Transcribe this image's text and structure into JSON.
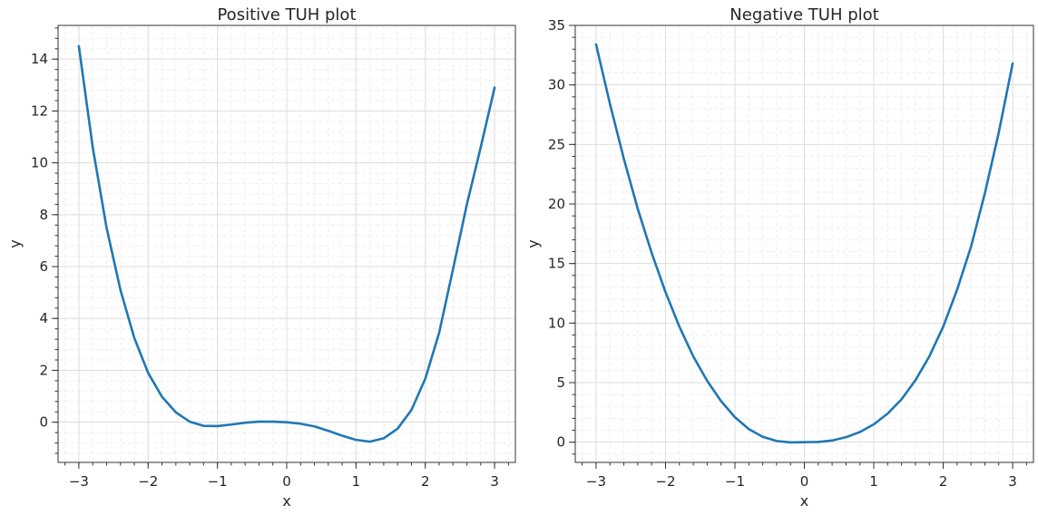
{
  "chart_data": [
    {
      "type": "line",
      "title": "Positive TUH plot",
      "xlabel": "x",
      "ylabel": "y",
      "xlim": [
        -3.3,
        3.3
      ],
      "ylim": [
        -1.55,
        15.3
      ],
      "xticks": [
        -3,
        -2,
        -1,
        0,
        1,
        2,
        3
      ],
      "xtick_labels": [
        "−3",
        "−2",
        "−1",
        "0",
        "1",
        "2",
        "3"
      ],
      "yticks": [
        0,
        2,
        4,
        6,
        8,
        10,
        12,
        14
      ],
      "ytick_labels": [
        "0",
        "2",
        "4",
        "6",
        "8",
        "10",
        "12",
        "14"
      ],
      "x_minor_step": 0.2,
      "y_minor_step": 0.4,
      "grid": true,
      "series": [
        {
          "color": "#1f77b4",
          "x": [
            -3.0,
            -2.8,
            -2.6,
            -2.4,
            -2.2,
            -2.0,
            -1.8,
            -1.6,
            -1.4,
            -1.2,
            -1.0,
            -0.8,
            -0.6,
            -0.4,
            -0.2,
            0.0,
            0.2,
            0.4,
            0.6,
            0.8,
            1.0,
            1.2,
            1.4,
            1.6,
            1.8,
            2.0,
            2.2,
            2.4,
            2.6,
            2.8,
            3.0
          ],
          "y": [
            14.5,
            10.6,
            7.5,
            5.1,
            3.25,
            1.9,
            0.98,
            0.38,
            0.02,
            -0.14,
            -0.15,
            -0.09,
            -0.02,
            0.02,
            0.02,
            0.0,
            -0.06,
            -0.16,
            -0.33,
            -0.52,
            -0.68,
            -0.75,
            -0.62,
            -0.25,
            0.47,
            1.68,
            3.45,
            5.9,
            8.4,
            10.6,
            12.9
          ]
        }
      ]
    },
    {
      "type": "line",
      "title": "Negative TUH plot",
      "xlabel": "x",
      "ylabel": "y",
      "xlim": [
        -3.3,
        3.3
      ],
      "ylim": [
        -1.7,
        35.0
      ],
      "xticks": [
        -3,
        -2,
        -1,
        0,
        1,
        2,
        3
      ],
      "xtick_labels": [
        "−3",
        "−2",
        "−1",
        "0",
        "1",
        "2",
        "3"
      ],
      "yticks": [
        0,
        5,
        10,
        15,
        20,
        25,
        30,
        35
      ],
      "ytick_labels": [
        "0",
        "5",
        "10",
        "15",
        "20",
        "25",
        "30",
        "35"
      ],
      "x_minor_step": 0.2,
      "y_minor_step": 1,
      "grid": true,
      "series": [
        {
          "color": "#1f77b4",
          "x": [
            -3.0,
            -2.8,
            -2.6,
            -2.4,
            -2.2,
            -2.0,
            -1.8,
            -1.6,
            -1.4,
            -1.2,
            -1.0,
            -0.8,
            -0.6,
            -0.4,
            -0.2,
            0.0,
            0.2,
            0.4,
            0.6,
            0.8,
            1.0,
            1.2,
            1.4,
            1.6,
            1.8,
            2.0,
            2.2,
            2.4,
            2.6,
            2.8,
            3.0
          ],
          "y": [
            33.4,
            28.4,
            23.8,
            19.6,
            15.9,
            12.6,
            9.7,
            7.2,
            5.15,
            3.45,
            2.1,
            1.1,
            0.45,
            0.1,
            -0.02,
            0.0,
            0.02,
            0.14,
            0.42,
            0.85,
            1.5,
            2.4,
            3.6,
            5.2,
            7.2,
            9.7,
            12.8,
            16.4,
            20.9,
            26.0,
            31.8
          ]
        }
      ]
    }
  ]
}
